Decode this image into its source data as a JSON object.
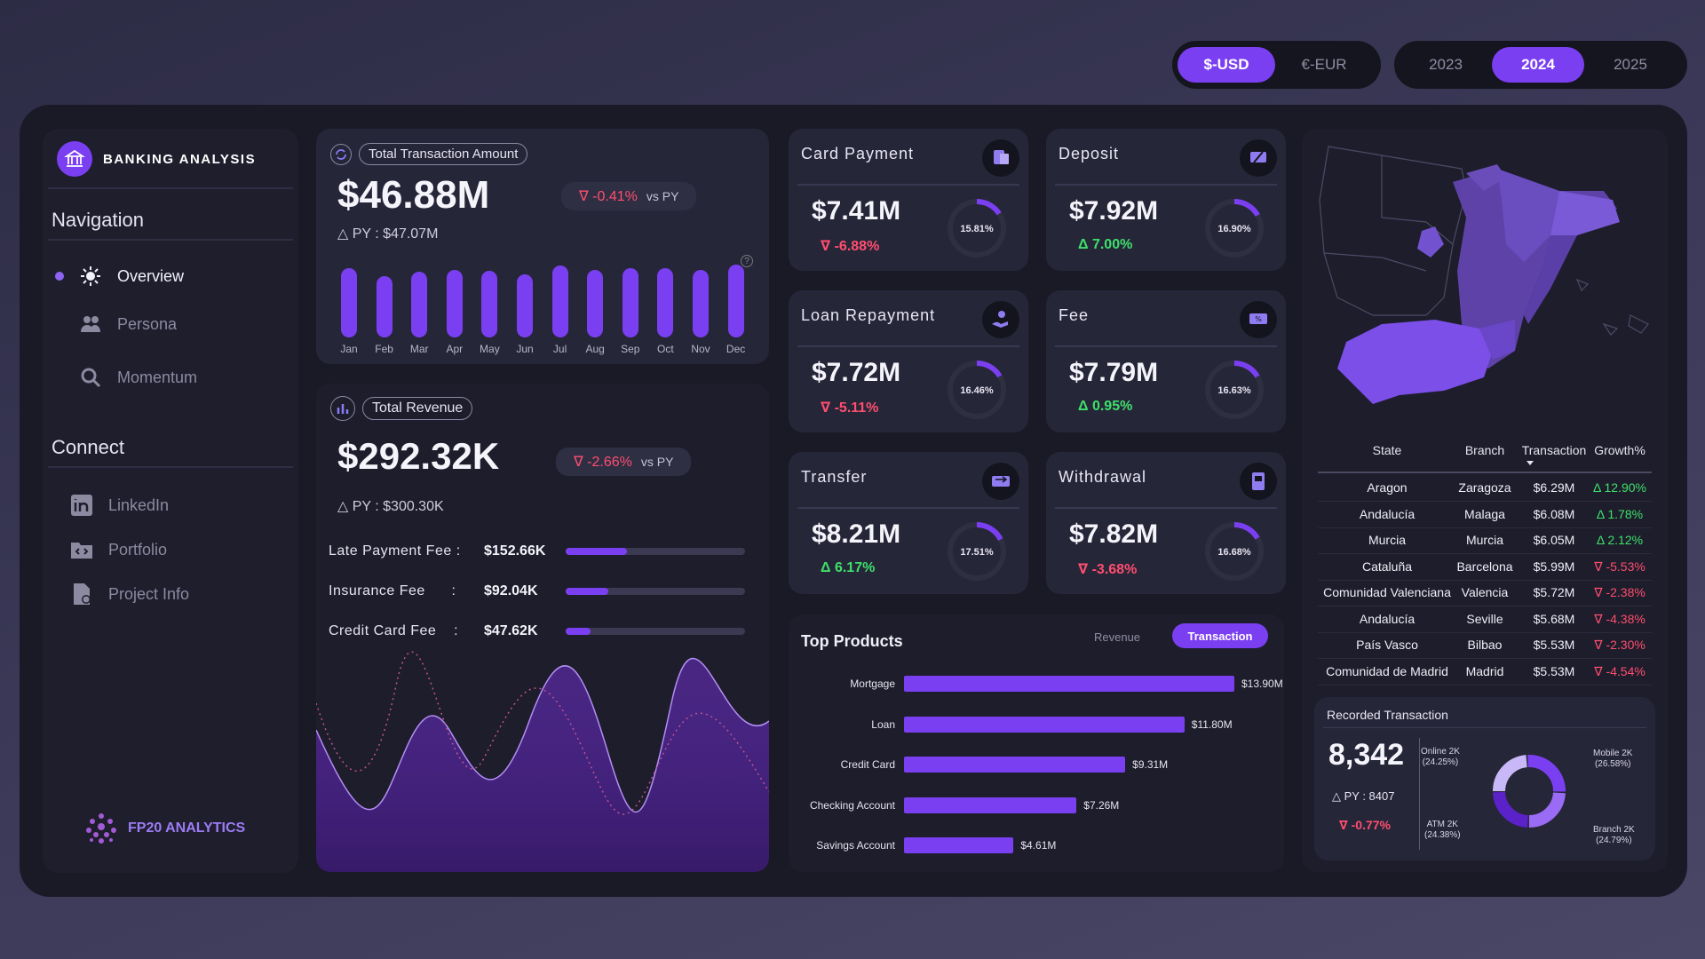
{
  "currency_toggle": {
    "options": [
      "$-USD",
      "€-EUR"
    ],
    "selected": "$-USD"
  },
  "year_toggle": {
    "options": [
      "2023",
      "2024",
      "2025"
    ],
    "selected": "2024"
  },
  "sidebar": {
    "title": "BANKING ANALYSIS",
    "navigation_heading": "Navigation",
    "nav_items": [
      {
        "label": "Overview",
        "icon": "sun-icon",
        "active": true
      },
      {
        "label": "Persona",
        "icon": "people-icon",
        "active": false
      },
      {
        "label": "Momentum",
        "icon": "magnifier-icon",
        "active": false
      }
    ],
    "connect_heading": "Connect",
    "connect_items": [
      {
        "label": "LinkedIn",
        "icon": "linkedin-icon"
      },
      {
        "label": "Portfolio",
        "icon": "code-folder-icon"
      },
      {
        "label": "Project Info",
        "icon": "document-icon"
      }
    ],
    "footer_brand": "FP20 ANALYTICS"
  },
  "total_transaction": {
    "label": "Total Transaction Amount",
    "value": "$46.88M",
    "change": "∇ -0.41%",
    "vs": "vs PY",
    "py": "△ PY : $47.07M",
    "months": [
      "Jan",
      "Feb",
      "Mar",
      "Apr",
      "May",
      "Jun",
      "Jul",
      "Aug",
      "Sep",
      "Oct",
      "Nov",
      "Dec"
    ],
    "month_levels": [
      0.93,
      0.82,
      0.88,
      0.91,
      0.89,
      0.85,
      0.97,
      0.91,
      0.93,
      0.93,
      0.91,
      0.98
    ]
  },
  "total_revenue": {
    "label": "Total Revenue",
    "value": "$292.32K",
    "change": "∇ -2.66%",
    "vs": "vs PY",
    "py": "△ PY : $300.30K",
    "fees": [
      {
        "name": "Late Payment Fee :",
        "value": "$152.66K",
        "share": 0.34
      },
      {
        "name": "Insurance Fee      :",
        "value": "$92.04K",
        "share": 0.24
      },
      {
        "name": "Credit Card Fee    :",
        "value": "$47.62K",
        "share": 0.14
      }
    ]
  },
  "kpis": [
    {
      "title": "Card Payment",
      "value": "$7.41M",
      "change": "∇ -6.88%",
      "trend": "down",
      "pct": "15.81%",
      "share": 0.1581,
      "icon": "card-icon"
    },
    {
      "title": "Deposit",
      "value": "$7.92M",
      "change": "Δ 7.00%",
      "trend": "up",
      "pct": "16.90%",
      "share": 0.169,
      "icon": "deposit-icon"
    },
    {
      "title": "Loan Repayment",
      "value": "$7.72M",
      "change": "∇ -5.11%",
      "trend": "down",
      "pct": "16.46%",
      "share": 0.1646,
      "icon": "hand-coin-icon"
    },
    {
      "title": "Fee",
      "value": "$7.79M",
      "change": "Δ 0.95%",
      "trend": "up",
      "pct": "16.63%",
      "share": 0.1663,
      "icon": "fee-icon"
    },
    {
      "title": "Transfer",
      "value": "$8.21M",
      "change": "Δ 6.17%",
      "trend": "up",
      "pct": "17.51%",
      "share": 0.1751,
      "icon": "transfer-icon"
    },
    {
      "title": "Withdrawal",
      "value": "$7.82M",
      "change": "∇ -3.68%",
      "trend": "down",
      "pct": "16.68%",
      "share": 0.1668,
      "icon": "atm-icon"
    }
  ],
  "top_products": {
    "title": "Top Products",
    "toggle": [
      "Revenue",
      "Transaction"
    ],
    "selected": "Transaction",
    "items": [
      {
        "name": "Mortgage",
        "value": 13.9,
        "label": "$13.90M"
      },
      {
        "name": "Loan",
        "value": 11.8,
        "label": "$11.80M"
      },
      {
        "name": "Credit Card",
        "value": 9.31,
        "label": "$9.31M"
      },
      {
        "name": "Checking Account",
        "value": 7.26,
        "label": "$7.26M"
      },
      {
        "name": "Savings Account",
        "value": 4.61,
        "label": "$4.61M"
      }
    ]
  },
  "state_table": {
    "headers": [
      "State",
      "Branch",
      "Transaction",
      "Growth%"
    ],
    "rows": [
      {
        "state": "Aragon",
        "branch": "Zaragoza",
        "transaction": "$6.29M",
        "growth": "Δ 12.90%",
        "trend": "up"
      },
      {
        "state": "Andalucía",
        "branch": "Malaga",
        "transaction": "$6.08M",
        "growth": "Δ 1.78%",
        "trend": "up"
      },
      {
        "state": "Murcia",
        "branch": "Murcia",
        "transaction": "$6.05M",
        "growth": "Δ 2.12%",
        "trend": "up"
      },
      {
        "state": "Cataluña",
        "branch": "Barcelona",
        "transaction": "$5.99M",
        "growth": "∇ -5.53%",
        "trend": "down"
      },
      {
        "state": "Comunidad Valenciana",
        "branch": "Valencia",
        "transaction": "$5.72M",
        "growth": "∇ -2.38%",
        "trend": "down"
      },
      {
        "state": "Andalucía",
        "branch": "Seville",
        "transaction": "$5.68M",
        "growth": "∇ -4.38%",
        "trend": "down"
      },
      {
        "state": "País Vasco",
        "branch": "Bilbao",
        "transaction": "$5.53M",
        "growth": "∇ -2.30%",
        "trend": "down"
      },
      {
        "state": "Comunidad de Madrid",
        "branch": "Madrid",
        "transaction": "$5.53M",
        "growth": "∇ -4.54%",
        "trend": "down"
      }
    ]
  },
  "recorded_transaction": {
    "title": "Recorded Transaction",
    "value": "8,342",
    "py": "△ PY : 8407",
    "change": "∇ -0.77%",
    "segments": [
      {
        "name": "Online 2K",
        "pct": "(24.25%)",
        "share": 0.2425,
        "color": "#c9b8f7"
      },
      {
        "name": "Mobile 2K",
        "pct": "(26.58%)",
        "share": 0.2658,
        "color": "#7b3ff2"
      },
      {
        "name": "Branch 2K",
        "pct": "(24.79%)",
        "share": 0.2479,
        "color": "#9a6cf5"
      },
      {
        "name": "ATM 2K",
        "pct": "(24.38%)",
        "share": 0.2438,
        "color": "#5a22c8"
      }
    ]
  },
  "colors": {
    "accent": "#7b3ff2",
    "negative": "#ff4e6f",
    "positive": "#3ee06a",
    "panel": "#262639"
  }
}
